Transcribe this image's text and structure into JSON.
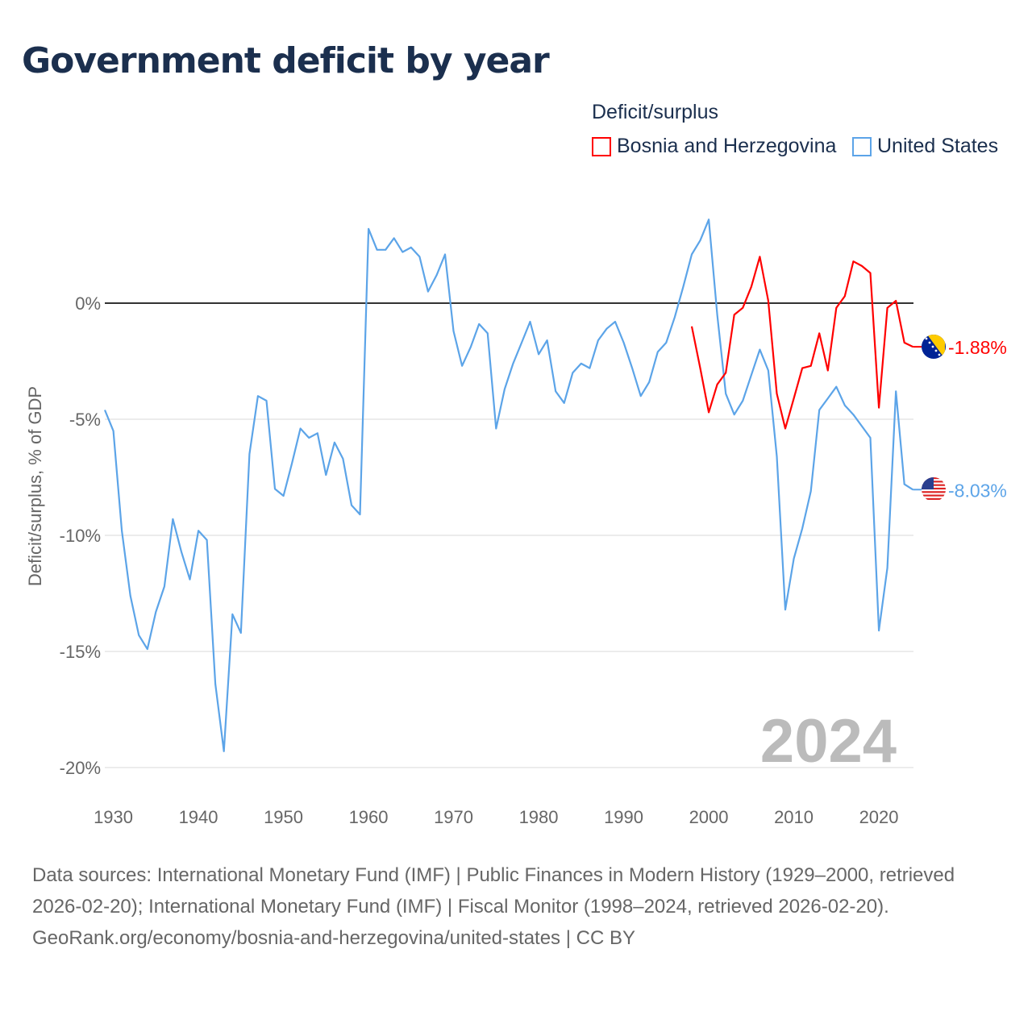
{
  "title": "Government deficit by year",
  "legend": {
    "title": "Deficit/surplus"
  },
  "footer": {
    "sources": "Data sources: International Monetary Fund (IMF) | Public Finances in Modern History (1929–2000, retrieved 2026-02-20); International Monetary Fund (IMF) | Fiscal Monitor (1998–2024, retrieved 2026-02-20).",
    "link": "GeoRank.org/economy/bosnia-and-herzegovina/united-states | CC BY"
  },
  "chart_data": {
    "type": "line",
    "title": "Government deficit by year",
    "ylabel": "Deficit/surplus, % of GDP",
    "xlabel": "",
    "ylim": [
      -20,
      4
    ],
    "xlim": [
      1929,
      2024
    ],
    "year_label": "2024",
    "yticks": [
      {
        "v": 0,
        "label": "0%"
      },
      {
        "v": -5,
        "label": "-5%"
      },
      {
        "v": -10,
        "label": "-10%"
      },
      {
        "v": -15,
        "label": "-15%"
      },
      {
        "v": -20,
        "label": "-20%"
      }
    ],
    "xticks": [
      1930,
      1940,
      1950,
      1960,
      1970,
      1980,
      1990,
      2000,
      2010,
      2020
    ],
    "series": [
      {
        "name": "Bosnia and Herzegovina",
        "color": "#ff0000",
        "end_label": "-1.88%",
        "start": 1998,
        "values": [
          -1.0,
          -2.8,
          -4.7,
          -3.5,
          -3.0,
          -0.5,
          -0.2,
          0.7,
          2.0,
          0.1,
          -3.9,
          -5.4,
          -4.1,
          -2.8,
          -2.7,
          -1.3,
          -2.9,
          -0.2,
          0.3,
          1.8,
          1.6,
          1.3,
          -4.5,
          -0.2,
          0.1,
          -1.7,
          -1.88
        ]
      },
      {
        "name": "United States",
        "color": "#5ca4e8",
        "end_label": "-8.03%",
        "start": 1929,
        "values": [
          -4.6,
          -5.5,
          -9.8,
          -12.6,
          -14.3,
          -14.9,
          -13.3,
          -12.2,
          -9.3,
          -10.7,
          -11.9,
          -9.8,
          -10.2,
          -16.4,
          -19.3,
          -13.4,
          -14.2,
          -6.5,
          -4.0,
          -4.2,
          -8.0,
          -8.3,
          -6.9,
          -5.4,
          -5.8,
          -5.6,
          -7.4,
          -6.0,
          -6.7,
          -8.7,
          -9.1,
          3.2,
          2.3,
          2.3,
          2.8,
          2.2,
          2.4,
          2.0,
          0.5,
          1.2,
          2.1,
          -1.2,
          -2.7,
          -1.9,
          -0.9,
          -1.3,
          -5.4,
          -3.7,
          -2.6,
          -1.7,
          -0.8,
          -2.2,
          -1.6,
          -3.8,
          -4.3,
          -3.0,
          -2.6,
          -2.8,
          -1.6,
          -1.1,
          -0.8,
          -1.7,
          -2.8,
          -4.0,
          -3.4,
          -2.1,
          -1.7,
          -0.6,
          0.7,
          2.1,
          2.7,
          3.6,
          -0.5,
          -3.9,
          -4.8,
          -4.2,
          -3.1,
          -2.0,
          -2.9,
          -6.6,
          -13.2,
          -11.0,
          -9.7,
          -8.1,
          -4.6,
          -4.1,
          -3.6,
          -4.4,
          -4.8,
          -5.3,
          -5.8,
          -14.1,
          -11.4,
          -3.8,
          -7.8,
          -8.03
        ]
      }
    ]
  }
}
